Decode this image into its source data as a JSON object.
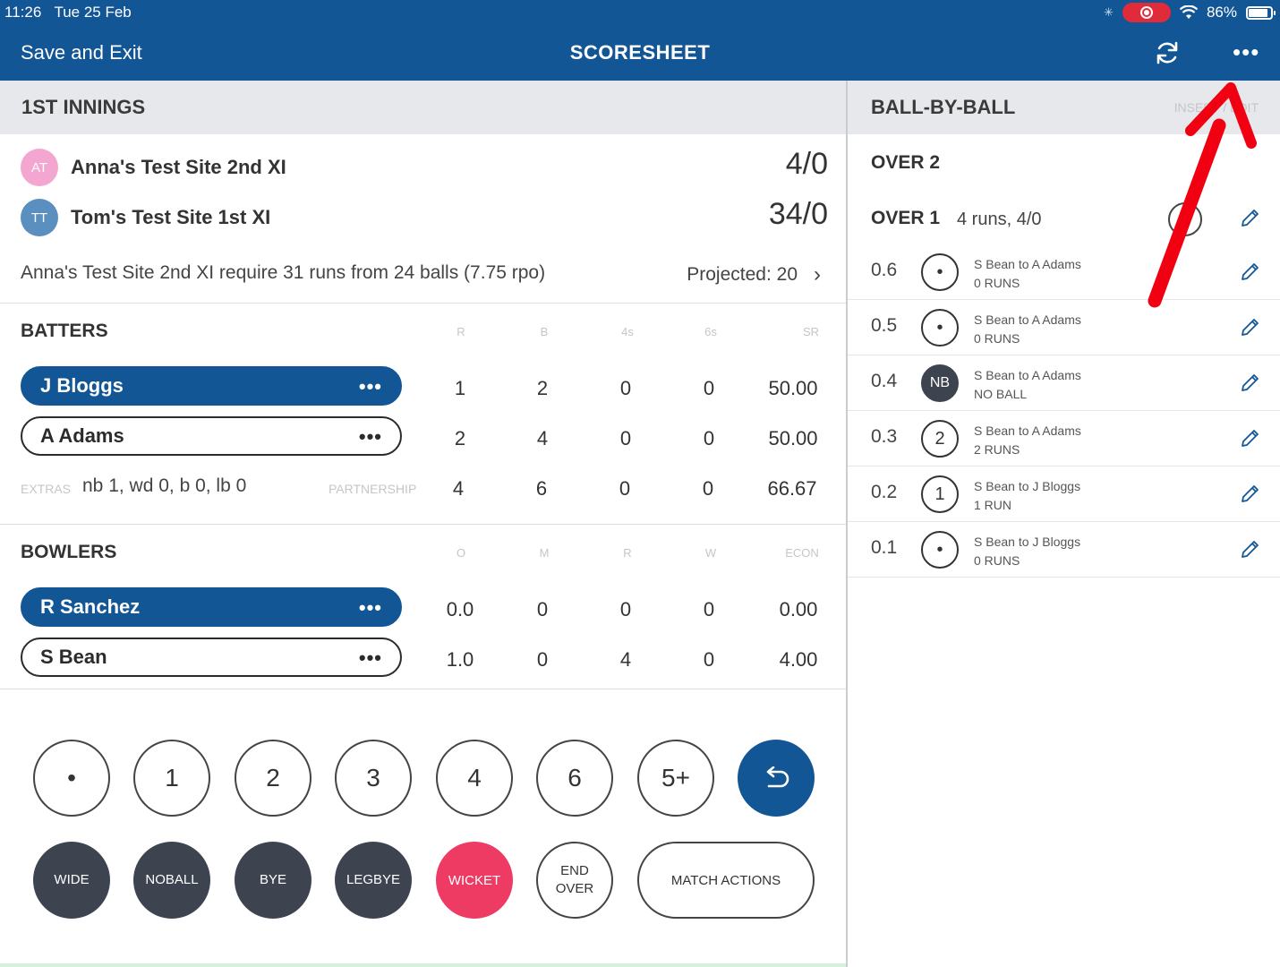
{
  "status_bar": {
    "time": "11:26",
    "date": "Tue 25 Feb",
    "battery": "86%",
    "battery_level": 0.86
  },
  "nav": {
    "save_exit": "Save and Exit",
    "title": "SCORESHEET",
    "refresh_icon": "refresh-icon",
    "more_icon": "more-icon"
  },
  "innings": {
    "title": "1ST INNINGS",
    "teams": [
      {
        "initials": "AT",
        "name": "Anna's Test Site 2nd XI",
        "score": "4/0",
        "color": "#f2a6d0"
      },
      {
        "initials": "TT",
        "name": "Tom's Test Site 1st XI",
        "score": "34/0",
        "color": "#5b8fbf"
      }
    ],
    "require_text": "Anna's Test Site 2nd XI require 31 runs from 24 balls (7.75 rpo)",
    "projected": "Projected: 20"
  },
  "batters": {
    "title": "BATTERS",
    "columns": [
      "R",
      "B",
      "4s",
      "6s",
      "SR"
    ],
    "rows": [
      {
        "name": "J Bloggs",
        "active": true,
        "values": [
          "1",
          "2",
          "0",
          "0",
          "50.00"
        ]
      },
      {
        "name": "A Adams",
        "active": false,
        "values": [
          "2",
          "4",
          "0",
          "0",
          "50.00"
        ]
      }
    ],
    "extras_label": "EXTRAS",
    "extras_value": "nb 1, wd 0, b 0, lb 0",
    "partnership_label": "PARTNERSHIP",
    "partnership_values": [
      "4",
      "6",
      "0",
      "0",
      "66.67"
    ]
  },
  "bowlers": {
    "title": "BOWLERS",
    "columns": [
      "O",
      "M",
      "R",
      "W",
      "ECON"
    ],
    "rows": [
      {
        "name": "R Sanchez",
        "active": true,
        "values": [
          "0.0",
          "0",
          "0",
          "0",
          "0.00"
        ]
      },
      {
        "name": "S Bean",
        "active": false,
        "values": [
          "1.0",
          "0",
          "4",
          "0",
          "4.00"
        ]
      }
    ]
  },
  "keypad": {
    "run_keys": [
      "•",
      "1",
      "2",
      "3",
      "4",
      "6",
      "5+"
    ],
    "extra_keys": [
      {
        "line1": "WIDE",
        "line2": ""
      },
      {
        "line1": "NO",
        "line2": "BALL"
      },
      {
        "line1": "BYE",
        "line2": ""
      },
      {
        "line1": "LEG",
        "line2": "BYE"
      }
    ],
    "wicket": "WICKET",
    "end_over_line1": "END",
    "end_over_line2": "OVER",
    "match_actions": "MATCH ACTIONS"
  },
  "ball_by_ball": {
    "title": "BALL-BY-BALL",
    "insert_edit": "INSERT / EDIT",
    "over2_label": "OVER 2",
    "over1_label": "OVER 1",
    "over1_summary": "4 runs, 4/0",
    "balls": [
      {
        "num": "0.6",
        "icon": "•",
        "type": "dot",
        "line1": "S Bean to A Adams",
        "line2": "0 RUNS"
      },
      {
        "num": "0.5",
        "icon": "•",
        "type": "dot",
        "line1": "S Bean to A Adams",
        "line2": "0 RUNS"
      },
      {
        "num": "0.4",
        "icon": "NB",
        "type": "nb",
        "line1": "S Bean to A Adams",
        "line2": "NO BALL"
      },
      {
        "num": "0.3",
        "icon": "2",
        "type": "run",
        "line1": "S Bean to A Adams",
        "line2": "2 RUNS"
      },
      {
        "num": "0.2",
        "icon": "1",
        "type": "run",
        "line1": "S Bean to J Bloggs",
        "line2": "1 RUN"
      },
      {
        "num": "0.1",
        "icon": "•",
        "type": "dot",
        "line1": "S Bean to J Bloggs",
        "line2": "0 RUNS"
      }
    ]
  },
  "colors": {
    "brand": "#135696",
    "wicket": "#ee3b63",
    "dark_key": "#3d4450",
    "annotation": "#f00010"
  }
}
